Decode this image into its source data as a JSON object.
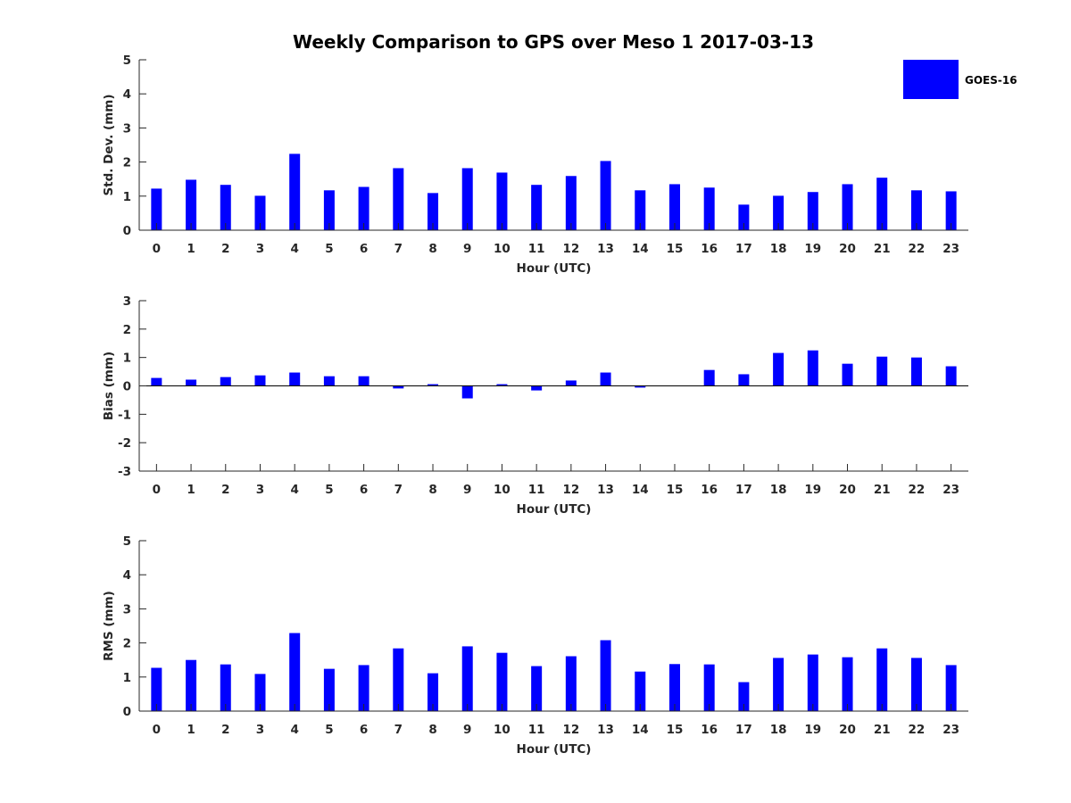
{
  "figure": {
    "title": "Weekly Comparison to GPS over Meso 1 2017-03-13",
    "bar_color": "#0000ff",
    "axis_color": "#262626",
    "legend": {
      "label": "GOES-16",
      "position": "top-right"
    }
  },
  "chart_data": [
    {
      "type": "bar",
      "name": "std-dev",
      "ylabel": "Std. Dev. (mm)",
      "xlabel": "Hour (UTC)",
      "ylim": [
        0,
        5
      ],
      "yticks": [
        0,
        1,
        2,
        3,
        4,
        5
      ],
      "zero_line": false,
      "categories": [
        "0",
        "1",
        "2",
        "3",
        "4",
        "5",
        "6",
        "7",
        "8",
        "9",
        "10",
        "11",
        "12",
        "13",
        "14",
        "15",
        "16",
        "17",
        "18",
        "19",
        "20",
        "21",
        "22",
        "23"
      ],
      "series": [
        {
          "name": "GOES-16",
          "values": [
            1.22,
            1.48,
            1.33,
            1.01,
            2.24,
            1.17,
            1.27,
            1.82,
            1.09,
            1.82,
            1.69,
            1.33,
            1.59,
            2.03,
            1.17,
            1.35,
            1.25,
            0.75,
            1.01,
            1.12,
            1.35,
            1.54,
            1.17,
            1.14
          ]
        }
      ],
      "grid": false
    },
    {
      "type": "bar",
      "name": "bias",
      "ylabel": "Bias (mm)",
      "xlabel": "Hour (UTC)",
      "ylim": [
        -3,
        3
      ],
      "yticks": [
        -3,
        -2,
        -1,
        0,
        1,
        2,
        3
      ],
      "zero_line": true,
      "categories": [
        "0",
        "1",
        "2",
        "3",
        "4",
        "5",
        "6",
        "7",
        "8",
        "9",
        "10",
        "11",
        "12",
        "13",
        "14",
        "15",
        "16",
        "17",
        "18",
        "19",
        "20",
        "21",
        "22",
        "23"
      ],
      "series": [
        {
          "name": "GOES-16",
          "values": [
            0.28,
            0.22,
            0.31,
            0.37,
            0.47,
            0.34,
            0.34,
            -0.09,
            0.06,
            -0.44,
            0.06,
            -0.16,
            0.19,
            0.47,
            -0.06,
            0.0,
            0.56,
            0.41,
            1.16,
            1.25,
            0.78,
            1.03,
            1.0,
            0.69
          ]
        }
      ],
      "grid": false
    },
    {
      "type": "bar",
      "name": "rms",
      "ylabel": "RMS (mm)",
      "xlabel": "Hour (UTC)",
      "ylim": [
        0,
        5
      ],
      "yticks": [
        0,
        1,
        2,
        3,
        4,
        5
      ],
      "zero_line": false,
      "categories": [
        "0",
        "1",
        "2",
        "3",
        "4",
        "5",
        "6",
        "7",
        "8",
        "9",
        "10",
        "11",
        "12",
        "13",
        "14",
        "15",
        "16",
        "17",
        "18",
        "19",
        "20",
        "21",
        "22",
        "23"
      ],
      "series": [
        {
          "name": "GOES-16",
          "values": [
            1.27,
            1.5,
            1.37,
            1.09,
            2.29,
            1.24,
            1.35,
            1.84,
            1.11,
            1.9,
            1.71,
            1.32,
            1.61,
            2.08,
            1.16,
            1.38,
            1.37,
            0.85,
            1.56,
            1.66,
            1.58,
            1.84,
            1.56,
            1.35
          ]
        }
      ],
      "grid": false
    }
  ]
}
